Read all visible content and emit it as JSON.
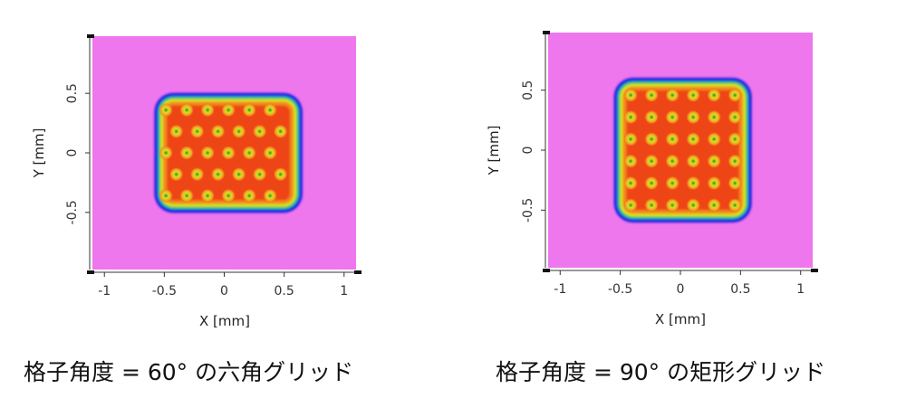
{
  "chart_data": [
    {
      "type": "heatmap",
      "xlabel": "X [mm]",
      "ylabel": "Y [mm]",
      "xlim": [
        -1.1,
        1.1
      ],
      "ylim": [
        -0.98,
        0.98
      ],
      "xticks": [
        -1,
        -0.5,
        0,
        0.5,
        1
      ],
      "xtick_labels": [
        "-1",
        "-0.5",
        "0",
        "0.5",
        "1"
      ],
      "yticks": [
        0.5,
        0,
        -0.5
      ],
      "ytick_labels": [
        "0.5",
        "0",
        "-0.5"
      ],
      "caption": "格子角度 = 60°  の六角グリッド",
      "grid_type": "hexagonal",
      "lattice_angle_deg": 60,
      "pattern_extent": {
        "x": [
          -0.53,
          0.6
        ],
        "y": [
          -0.45,
          0.45
        ]
      },
      "colors": {
        "background": "#ee77ee",
        "low": "#1a1ae6",
        "mid": "#d8e020",
        "high": "#ee4416"
      }
    },
    {
      "type": "heatmap",
      "xlabel": "X [mm]",
      "ylabel": "Y [mm]",
      "xlim": [
        -1.1,
        1.1
      ],
      "ylim": [
        -0.98,
        0.98
      ],
      "xticks": [
        -1,
        -0.5,
        0,
        0.5,
        1
      ],
      "xtick_labels": [
        "-1",
        "-0.5",
        "0",
        "0.5",
        "1"
      ],
      "yticks": [
        0.5,
        0,
        -0.5
      ],
      "ytick_labels": [
        "0.5",
        "0",
        "-0.5"
      ],
      "caption": "格子角度 = 90°  の矩形グリッド",
      "grid_type": "rectangular",
      "lattice_angle_deg": 90,
      "pattern_extent": {
        "x": [
          -0.5,
          0.54
        ],
        "y": [
          -0.55,
          0.55
        ]
      },
      "colors": {
        "background": "#ee77ee",
        "low": "#1a1ae6",
        "mid": "#d8e020",
        "high": "#ee4416"
      }
    }
  ]
}
